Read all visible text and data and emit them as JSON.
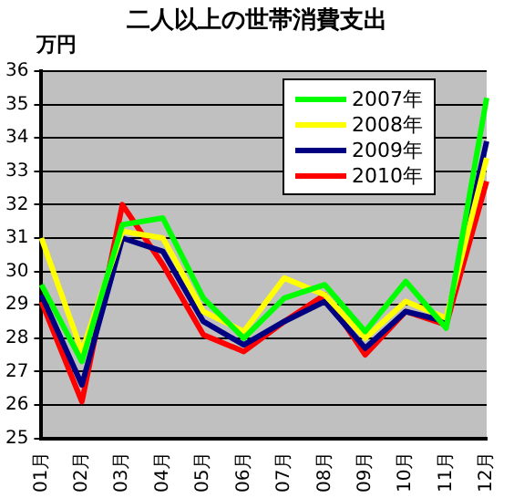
{
  "chart_data": {
    "type": "line",
    "title": "二人以上の世帯消費支出",
    "ylabel": "万円",
    "categories": [
      "01月",
      "02月",
      "03月",
      "04月",
      "05月",
      "06月",
      "07月",
      "08月",
      "09月",
      "10月",
      "11月",
      "12月"
    ],
    "series": [
      {
        "name": "2007年",
        "color": "#00ff00",
        "values": [
          29.6,
          27.3,
          31.4,
          31.6,
          29.2,
          28.0,
          29.2,
          29.6,
          28.2,
          29.7,
          28.3,
          35.2
        ]
      },
      {
        "name": "2008年",
        "color": "#ffff00",
        "values": [
          31.0,
          27.6,
          31.2,
          31.0,
          28.8,
          28.2,
          29.8,
          29.3,
          28.0,
          29.1,
          28.6,
          33.4
        ]
      },
      {
        "name": "2009年",
        "color": "#000080",
        "values": [
          29.3,
          26.6,
          31.0,
          30.6,
          28.5,
          27.8,
          28.5,
          29.1,
          27.7,
          28.8,
          28.5,
          33.9
        ]
      },
      {
        "name": "2010年",
        "color": "#ff0000",
        "values": [
          29.1,
          26.1,
          32.0,
          30.2,
          28.1,
          27.6,
          28.5,
          29.3,
          27.5,
          28.8,
          28.4,
          32.7
        ]
      }
    ],
    "ylim": [
      25,
      36
    ],
    "yticks": [
      25,
      26,
      27,
      28,
      29,
      30,
      31,
      32,
      33,
      34,
      35,
      36
    ],
    "grid": "y",
    "legend": "top right",
    "marker": "none",
    "line_style": "solid"
  }
}
